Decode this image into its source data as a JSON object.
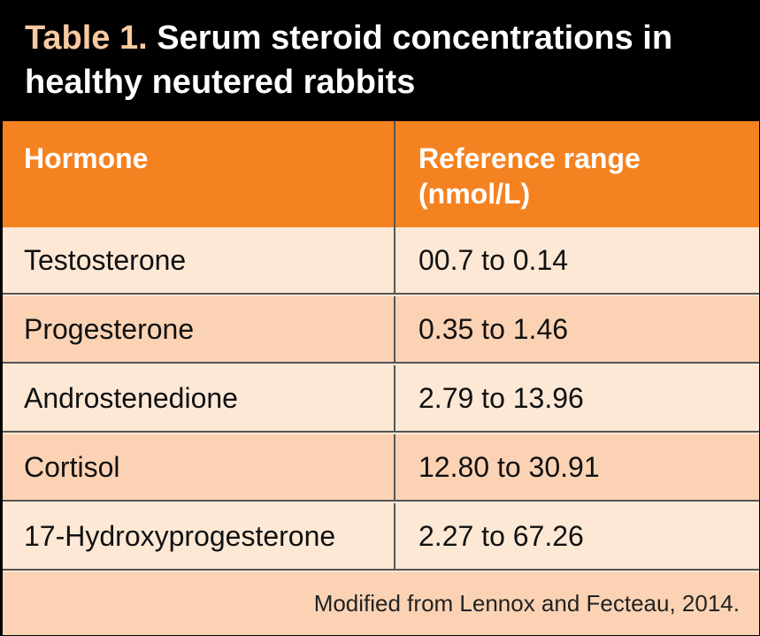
{
  "title": {
    "prefix": "Table 1.",
    "text": " Serum steroid concentrations in healthy neutered rabbits"
  },
  "table": {
    "headers": [
      "Hormone",
      "Reference range (nmol/L)"
    ],
    "rows": [
      [
        "Testosterone",
        "00.7 to 0.14"
      ],
      [
        "Progesterone",
        "0.35 to 1.46"
      ],
      [
        "Androstenedione",
        "2.79 to 13.96"
      ],
      [
        "Cortisol",
        "12.80 to 30.91"
      ],
      [
        "17-Hydroxyprogesterone",
        "2.27 to 67.26"
      ]
    ]
  },
  "footnote": "Modified from Lennox and Fecteau, 2014.",
  "colors": {
    "header_bg": "#f58220",
    "title_prefix": "#f9c9a0",
    "row_light": "#fde8d6",
    "row_dark": "#fbd3b4"
  }
}
